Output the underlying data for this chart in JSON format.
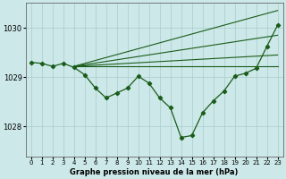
{
  "title": "Graphe pression niveau de la mer (hPa)",
  "background_color": "#cce8e8",
  "grid_color": "#aacccc",
  "line_color": "#1a5c1a",
  "x_ticks": [
    0,
    1,
    2,
    3,
    4,
    5,
    6,
    7,
    8,
    9,
    10,
    11,
    12,
    13,
    14,
    15,
    16,
    17,
    18,
    19,
    20,
    21,
    22,
    23
  ],
  "ylim": [
    1027.4,
    1030.5
  ],
  "yticks": [
    1028,
    1029,
    1030
  ],
  "main_curve": {
    "x": [
      0,
      1,
      2,
      3,
      4,
      5,
      6,
      7,
      8,
      9,
      10,
      11,
      12,
      13,
      14,
      15,
      16,
      17,
      18,
      19,
      20,
      21,
      22,
      23
    ],
    "y": [
      1029.3,
      1029.28,
      1029.22,
      1029.28,
      1029.2,
      1029.05,
      1028.78,
      1028.58,
      1028.68,
      1028.78,
      1029.02,
      1028.88,
      1028.58,
      1028.38,
      1027.78,
      1027.82,
      1028.28,
      1028.52,
      1028.72,
      1029.02,
      1029.08,
      1029.18,
      1029.62,
      1030.05
    ]
  },
  "fan_lines": [
    {
      "x": [
        4,
        23
      ],
      "y": [
        1029.22,
        1029.22
      ]
    },
    {
      "x": [
        4,
        23
      ],
      "y": [
        1029.22,
        1029.45
      ]
    },
    {
      "x": [
        4,
        23
      ],
      "y": [
        1029.22,
        1029.85
      ]
    },
    {
      "x": [
        4,
        23
      ],
      "y": [
        1029.22,
        1030.35
      ]
    }
  ],
  "xlim": [
    -0.5,
    23.5
  ],
  "tick_fontsize": 5,
  "ylabel_fontsize": 6,
  "title_fontsize": 6,
  "linewidth": 0.9,
  "markersize": 2.2
}
